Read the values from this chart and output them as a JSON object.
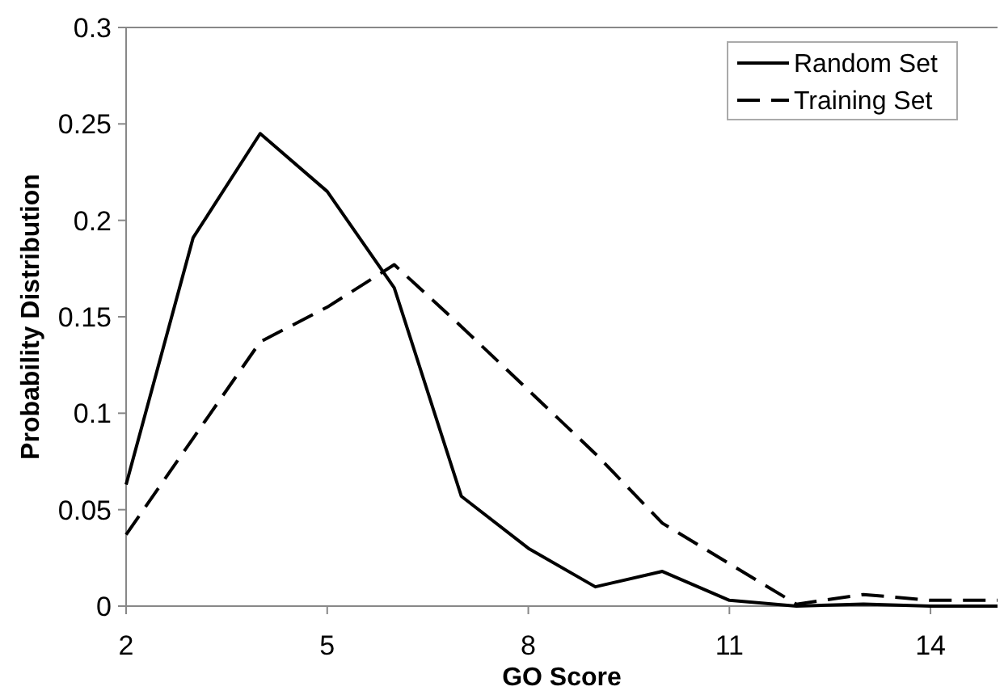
{
  "chart_data": {
    "type": "line",
    "xlabel": "GO Score",
    "ylabel": "Probability Distribution",
    "x": [
      2,
      3,
      4,
      5,
      6,
      7,
      8,
      9,
      10,
      11,
      12,
      13,
      14,
      15
    ],
    "xlim": [
      2,
      15
    ],
    "xticks": [
      2,
      5,
      8,
      11,
      14
    ],
    "ylim": [
      0,
      0.3
    ],
    "yticks": [
      0,
      0.05,
      0.1,
      0.15,
      0.2,
      0.25,
      0.3
    ],
    "grid": false,
    "legend": "top right",
    "marker": "none",
    "series": [
      {
        "name": "Random Set",
        "color": "#000000",
        "line_style": "solid",
        "values": [
          0.063,
          0.191,
          0.245,
          0.215,
          0.165,
          0.057,
          0.03,
          0.01,
          0.018,
          0.003,
          0,
          0.001,
          0,
          0
        ]
      },
      {
        "name": "Training Set",
        "color": "#000000",
        "line_style": "dashed",
        "values": [
          0.037,
          0.087,
          0.137,
          0.155,
          0.177,
          0.145,
          0.112,
          0.079,
          0.043,
          0.022,
          0.001,
          0.006,
          0.003,
          0.003
        ]
      }
    ]
  }
}
